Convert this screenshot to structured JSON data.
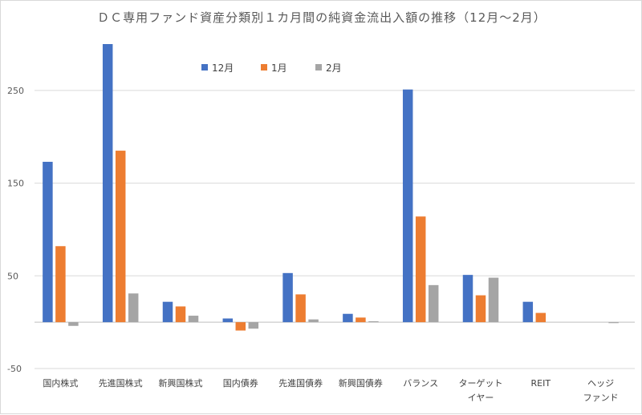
{
  "chart_data": {
    "type": "bar",
    "title": "ＤＣ専用ファンド資産分類別１カ月間の純資金流出入額の推移（12月～2月）",
    "categories": [
      [
        "国内株式"
      ],
      [
        "先進国株式"
      ],
      [
        "新興国株式"
      ],
      [
        "国内債券"
      ],
      [
        "先進国債券"
      ],
      [
        "新興国債券"
      ],
      [
        "バランス"
      ],
      [
        "ターゲット",
        "イヤー"
      ],
      [
        "REIT"
      ],
      [
        "ヘッジ",
        "ファンド"
      ]
    ],
    "series": [
      {
        "name": "12月",
        "color": "#4472C4",
        "values": [
          173,
          300,
          22,
          4,
          53,
          9,
          251,
          51,
          22,
          0
        ]
      },
      {
        "name": "1月",
        "color": "#ED7D31",
        "values": [
          82,
          185,
          17,
          -9,
          30,
          5,
          114,
          29,
          10,
          0
        ]
      },
      {
        "name": "2月",
        "color": "#A5A5A5",
        "values": [
          -4,
          31,
          7,
          -7,
          3,
          1,
          40,
          48,
          0,
          -1
        ]
      }
    ],
    "yticks": [
      "250",
      "150",
      "50",
      "-50"
    ],
    "ytick_values": [
      250,
      150,
      50,
      -50
    ],
    "ylim": [
      -50,
      300
    ],
    "xlabel": "",
    "ylabel": "",
    "grid": true,
    "legend": "top"
  }
}
